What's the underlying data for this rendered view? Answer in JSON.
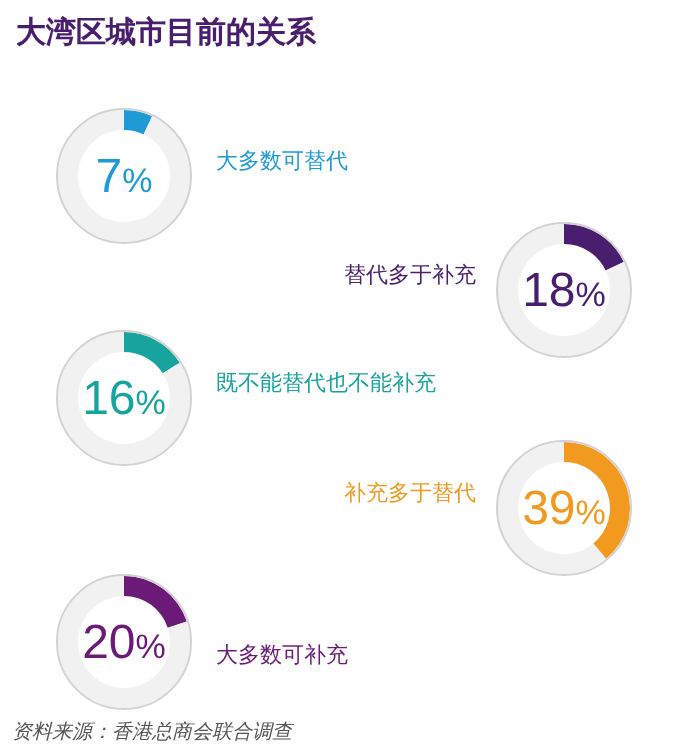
{
  "chart_data": [
    {
      "type": "donut",
      "title": "大多数可替代",
      "subtitle": "大湾区城市目前的关系",
      "categories": [
        null,
        null
      ],
      "values": [
        7,
        93
      ],
      "colors": [
        "#1e9ad6",
        "#f1f1f1"
      ],
      "annotations": [
        "7%"
      ]
    },
    {
      "type": "donut",
      "title": "替代多于补充",
      "categories": [
        null,
        null
      ],
      "values": [
        18,
        82
      ],
      "colors": [
        "#4a1e6e",
        "#f1f1f1"
      ],
      "annotations": [
        "18%"
      ]
    },
    {
      "type": "donut",
      "title": "既不能替代也不能补充",
      "categories": [
        null,
        null
      ],
      "values": [
        16,
        84
      ],
      "colors": [
        "#17a39e",
        "#f1f1f1"
      ],
      "annotations": [
        "16%"
      ]
    },
    {
      "type": "donut",
      "title": "补充多于替代",
      "categories": [
        null,
        null
      ],
      "values": [
        39,
        61
      ],
      "colors": [
        "#f29a1f",
        "#f1f1f1"
      ],
      "annotations": [
        "39%"
      ]
    },
    {
      "type": "donut",
      "title": "大多数可补充",
      "categories": [
        null,
        null
      ],
      "values": [
        20,
        80
      ],
      "colors": [
        "#6b1a78",
        "#f1f1f1"
      ],
      "annotations": [
        "20%",
        "资料来源：香港总商会联合调查"
      ]
    }
  ]
}
